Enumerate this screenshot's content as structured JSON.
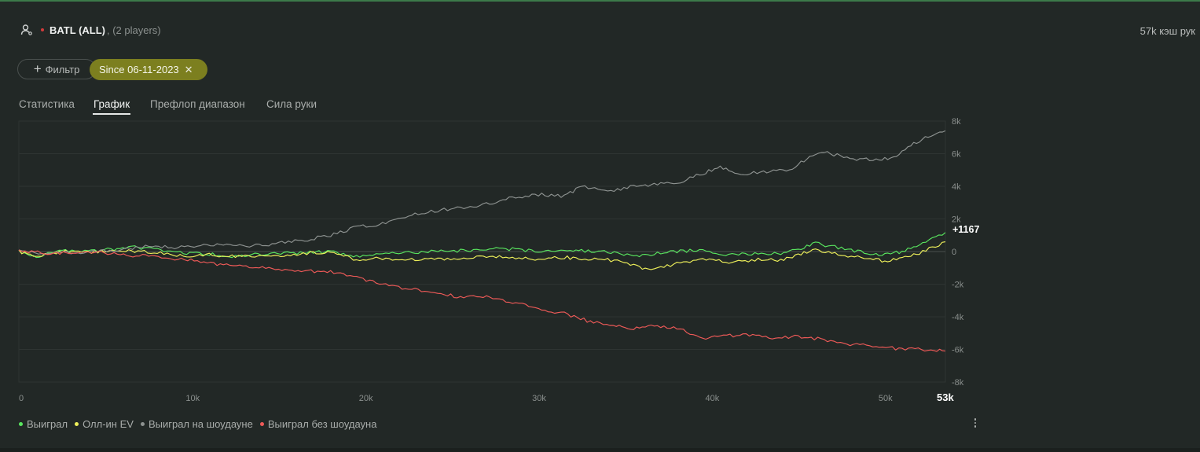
{
  "header": {
    "title": "BATL (ALL)",
    "subtitle": ", (2 players)",
    "hands_count": "57k кэш рук"
  },
  "filters": {
    "add_label": "Фильтр",
    "chip_label": "Since 06-11-2023"
  },
  "tabs": [
    {
      "label": "Статистика",
      "active": false
    },
    {
      "label": "График",
      "active": true
    },
    {
      "label": "Префлоп диапазон",
      "active": false
    },
    {
      "label": "Сила руки",
      "active": false
    }
  ],
  "colors": {
    "won": "#59e65f",
    "allin_ev": "#eef05a",
    "showdown": "#8e9391",
    "non_showdown": "#ef5a58"
  },
  "chart_data": {
    "type": "line",
    "x_ticks": [
      "0",
      "10k",
      "20k",
      "30k",
      "40k",
      "50k"
    ],
    "x_end_label": "53k",
    "y_ticks": [
      "8k",
      "6k",
      "4k",
      "2k",
      "0",
      "-2k",
      "-4k",
      "-6k",
      "-8k"
    ],
    "xlim": [
      0,
      53500
    ],
    "ylim": [
      -8000,
      8000
    ],
    "grid": true,
    "legend_position": "bottom-left",
    "end_value_label": "+1167",
    "series": [
      {
        "name": "Выиграл",
        "color_key": "won",
        "x": [
          0,
          1000,
          1500,
          2500,
          4000,
          5500,
          6500,
          8000,
          9500,
          11000,
          12500,
          14000,
          15500,
          17000,
          18000,
          19500,
          21000,
          22500,
          24000,
          25500,
          27000,
          28500,
          30000,
          31500,
          32500,
          34000,
          35500,
          36500,
          38000,
          39500,
          41000,
          42500,
          44000,
          45000,
          46000,
          47500,
          49000,
          50000,
          51000,
          52000,
          53500
        ],
        "y": [
          0,
          -350,
          -150,
          50,
          0,
          150,
          300,
          100,
          -100,
          -150,
          -300,
          -150,
          -100,
          -50,
          0,
          -300,
          -100,
          -50,
          0,
          50,
          150,
          150,
          0,
          150,
          50,
          0,
          -300,
          -150,
          0,
          100,
          -200,
          -100,
          -100,
          150,
          500,
          200,
          -100,
          -200,
          0,
          400,
          1167
        ]
      },
      {
        "name": "Олл-ин EV",
        "color_key": "allin_ev",
        "x": [
          0,
          1000,
          1500,
          2500,
          4000,
          5500,
          6500,
          8000,
          9500,
          11000,
          12500,
          14000,
          15500,
          17000,
          18000,
          19500,
          21000,
          22500,
          24000,
          25500,
          27000,
          28500,
          30000,
          31500,
          32500,
          34000,
          35500,
          36500,
          38000,
          39500,
          41000,
          42500,
          44000,
          45000,
          46000,
          47500,
          49000,
          50000,
          51000,
          52000,
          53500
        ],
        "y": [
          0,
          -250,
          -200,
          0,
          -50,
          100,
          50,
          -100,
          -250,
          -200,
          -300,
          -250,
          -200,
          -100,
          0,
          -500,
          -400,
          -500,
          -450,
          -400,
          -300,
          -350,
          -500,
          -350,
          -450,
          -500,
          -800,
          -1200,
          -700,
          -500,
          -650,
          -500,
          -500,
          -200,
          100,
          -200,
          -400,
          -600,
          -400,
          -100,
          600
        ]
      },
      {
        "name": "Выиграл на шоудауне",
        "color_key": "showdown",
        "x": [
          0,
          1500,
          3000,
          4500,
          6000,
          7500,
          9000,
          10500,
          12000,
          13500,
          15000,
          16500,
          18000,
          19500,
          21000,
          22500,
          24000,
          25500,
          27000,
          28500,
          30000,
          31500,
          32500,
          34000,
          35500,
          36500,
          38000,
          39500,
          40500,
          41500,
          43000,
          44500,
          45500,
          46500,
          48000,
          49500,
          50500,
          51500,
          52500,
          53500
        ],
        "y": [
          0,
          -100,
          -50,
          0,
          100,
          350,
          250,
          400,
          400,
          350,
          500,
          700,
          1000,
          1500,
          1700,
          2200,
          2500,
          2700,
          2900,
          3300,
          3500,
          3400,
          4000,
          3700,
          4000,
          4100,
          4200,
          4800,
          5200,
          4700,
          4900,
          5000,
          5700,
          6100,
          5700,
          5600,
          5800,
          6500,
          7100,
          7400
        ]
      },
      {
        "name": "Выиграл без шоудауна",
        "color_key": "non_showdown",
        "x": [
          0,
          2000,
          4000,
          5500,
          7500,
          9000,
          10500,
          12000,
          13500,
          15000,
          16500,
          18000,
          19500,
          21000,
          22500,
          24000,
          25500,
          27000,
          28500,
          30000,
          31500,
          33000,
          34500,
          35500,
          36500,
          38000,
          39500,
          40500,
          42000,
          43500,
          45000,
          46500,
          48000,
          49500,
          51000,
          52500,
          53500
        ],
        "y": [
          0,
          -100,
          0,
          -150,
          -300,
          -450,
          -600,
          -850,
          -950,
          -1100,
          -1200,
          -1200,
          -1600,
          -2000,
          -2300,
          -2500,
          -2800,
          -2750,
          -3100,
          -3500,
          -3800,
          -4300,
          -4600,
          -4700,
          -4600,
          -4700,
          -5300,
          -5200,
          -5100,
          -5300,
          -5200,
          -5400,
          -5700,
          -5800,
          -6000,
          -6000,
          -6100
        ]
      }
    ]
  }
}
